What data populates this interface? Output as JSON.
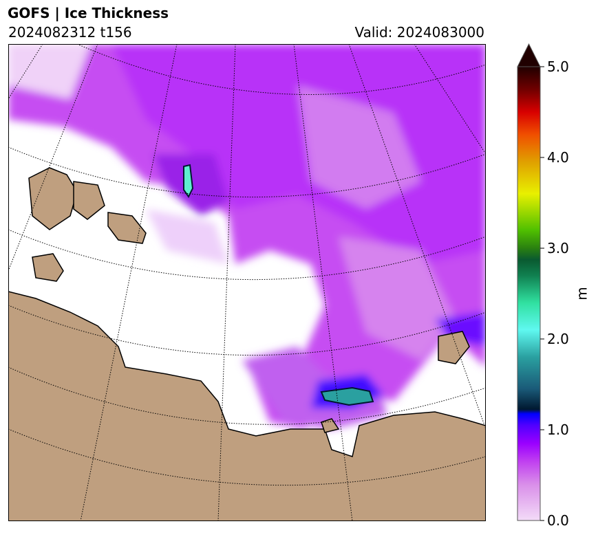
{
  "header": {
    "title": "GOFS  |  Ice Thickness",
    "run": "2024082312 t156",
    "valid": "Valid: 2024083000"
  },
  "colors": {
    "land": "#bf9f7f",
    "coast": "#000000",
    "ocean": "#ffffff"
  },
  "chart_data": {
    "type": "heatmap",
    "title": "GOFS | Ice Thickness",
    "colorbar": {
      "label": "m",
      "range": [
        0.0,
        5.0
      ],
      "extend": "max",
      "ticks": [
        "0.0",
        "1.0",
        "2.0",
        "3.0",
        "4.0",
        "5.0"
      ],
      "tick_values": [
        0,
        1,
        2,
        3,
        4,
        5
      ]
    }
  }
}
